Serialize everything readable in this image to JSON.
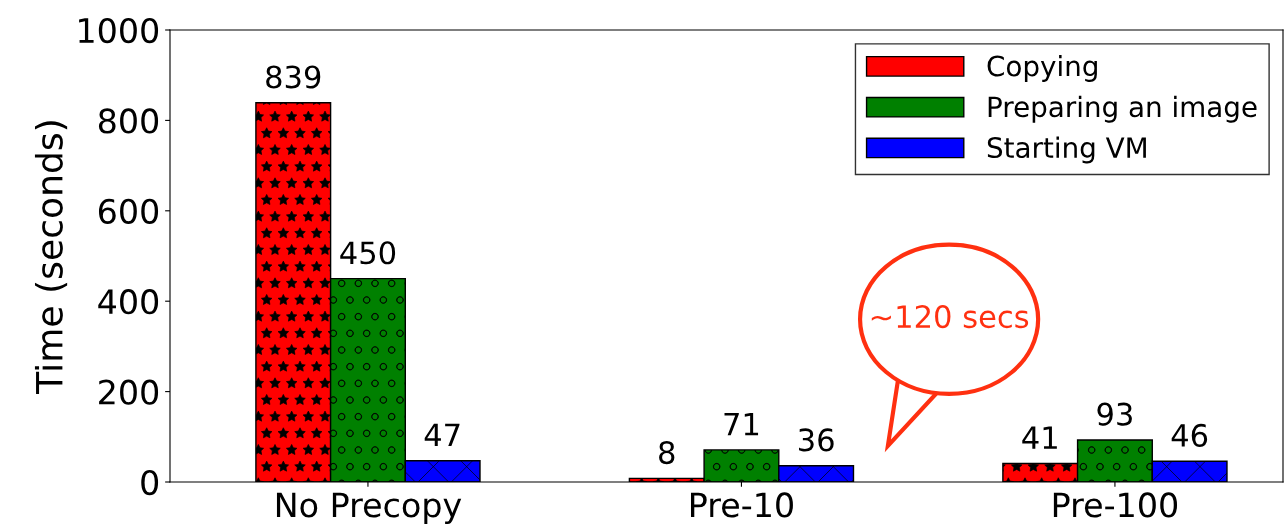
{
  "chart_data": {
    "type": "bar",
    "ylabel": "Time (seconds)",
    "categories": [
      "No Precopy",
      "Pre-10",
      "Pre-100"
    ],
    "series": [
      {
        "name": "Copying",
        "color": "#ff0000",
        "values": [
          839,
          8,
          41
        ]
      },
      {
        "name": "Preparing an image",
        "color": "#008000",
        "values": [
          450,
          71,
          93
        ]
      },
      {
        "name": "Starting VM",
        "color": "#0000ff",
        "values": [
          47,
          36,
          46
        ]
      }
    ],
    "ylim": [
      0,
      1000
    ],
    "yticks": [
      0,
      200,
      400,
      600,
      800,
      1000
    ],
    "data_labels": true,
    "legend": "top right",
    "grid": false,
    "annotations": [
      "~120 secs"
    ]
  }
}
